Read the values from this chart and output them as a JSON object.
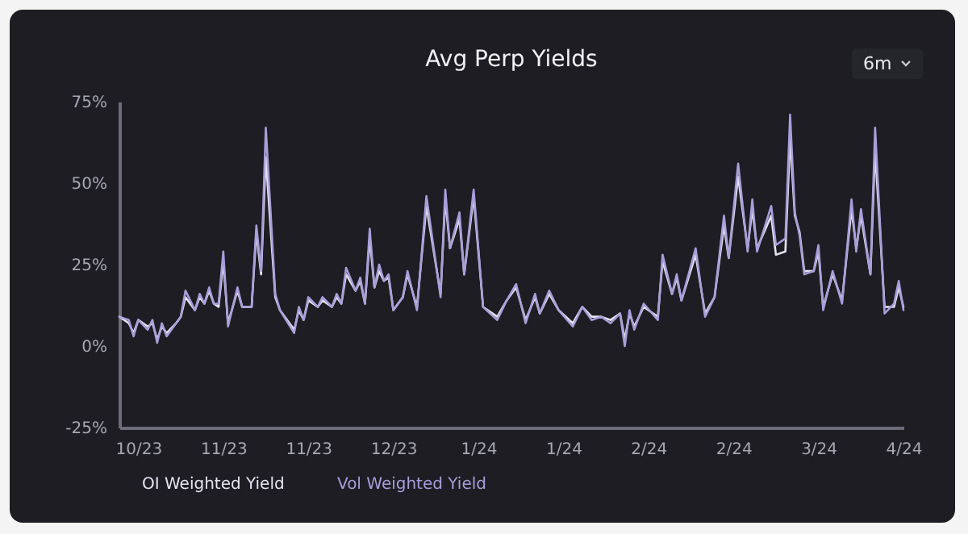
{
  "chart_data": {
    "type": "line",
    "title": "Avg Perp Yields",
    "annotations": [
      "6m"
    ],
    "x": [
      "2023-10-18",
      "2023-10-20",
      "2023-10-21",
      "2023-10-22",
      "2023-10-24",
      "2023-10-25",
      "2023-10-26",
      "2023-10-27",
      "2023-10-28",
      "2023-10-30",
      "2023-10-31",
      "2023-11-01",
      "2023-11-03",
      "2023-11-04",
      "2023-11-05",
      "2023-11-06",
      "2023-11-07",
      "2023-11-08",
      "2023-11-09",
      "2023-11-10",
      "2023-11-12",
      "2023-11-13",
      "2023-11-15",
      "2023-11-16",
      "2023-11-17",
      "2023-11-18",
      "2023-11-20",
      "2023-11-21",
      "2023-11-24",
      "2023-11-25",
      "2023-11-26",
      "2023-11-27",
      "2023-11-29",
      "2023-11-30",
      "2023-12-02",
      "2023-12-03",
      "2023-12-04",
      "2023-12-05",
      "2023-12-07",
      "2023-12-08",
      "2023-12-09",
      "2023-12-10",
      "2023-12-11",
      "2023-12-12",
      "2023-12-13",
      "2023-12-14",
      "2023-12-15",
      "2023-12-17",
      "2023-12-18",
      "2023-12-20",
      "2023-12-22",
      "2023-12-25",
      "2023-12-26",
      "2023-12-27",
      "2023-12-29",
      "2023-12-30",
      "2024-01-01",
      "2024-01-03",
      "2024-01-06",
      "2024-01-08",
      "2024-01-10",
      "2024-01-12",
      "2024-01-14",
      "2024-01-15",
      "2024-01-17",
      "2024-01-19",
      "2024-01-22",
      "2024-01-24",
      "2024-01-26",
      "2024-01-28",
      "2024-01-30",
      "2024-02-01",
      "2024-02-02",
      "2024-02-03",
      "2024-02-04",
      "2024-02-06",
      "2024-02-09",
      "2024-02-10",
      "2024-02-12",
      "2024-02-13",
      "2024-02-14",
      "2024-02-17",
      "2024-02-19",
      "2024-02-21",
      "2024-02-23",
      "2024-02-24",
      "2024-02-26",
      "2024-02-28",
      "2024-02-29",
      "2024-03-01",
      "2024-03-04",
      "2024-03-05",
      "2024-03-07",
      "2024-03-08",
      "2024-03-09",
      "2024-03-10",
      "2024-03-11",
      "2024-03-13",
      "2024-03-14",
      "2024-03-15",
      "2024-03-17",
      "2024-03-19",
      "2024-03-21",
      "2024-03-22",
      "2024-03-23",
      "2024-03-25",
      "2024-03-26",
      "2024-03-28",
      "2024-03-30",
      "2024-03-31",
      "2024-04-01"
    ],
    "series": [
      {
        "name": "OI Weighted Yield",
        "color": "#e6e3f0",
        "values": [
          9,
          7,
          4,
          8,
          6,
          7,
          2,
          6,
          4,
          7,
          9,
          15,
          11,
          15,
          13,
          17,
          13,
          12,
          26,
          7,
          17,
          12,
          12,
          35,
          22,
          58,
          15,
          11,
          5,
          11,
          8,
          14,
          12,
          14,
          12,
          15,
          13,
          22,
          17,
          20,
          13,
          33,
          18,
          23,
          20,
          21,
          11,
          15,
          22,
          12,
          43,
          16,
          45,
          30,
          39,
          22,
          46,
          12,
          9,
          14,
          18,
          8,
          15,
          10,
          16,
          11,
          7,
          12,
          9,
          9,
          8,
          10,
          2,
          10,
          6,
          12,
          9,
          26,
          16,
          21,
          14,
          28,
          10,
          15,
          37,
          27,
          52,
          30,
          42,
          30,
          40,
          28,
          29,
          64,
          40,
          35,
          23,
          23,
          29,
          12,
          22,
          14,
          42,
          30,
          40,
          22,
          60,
          12,
          12,
          18,
          12
        ]
      },
      {
        "name": "Vol Weighted Yield",
        "color": "#a99ed9",
        "values": [
          9,
          8,
          3,
          8,
          5,
          8,
          1,
          7,
          3,
          7,
          9,
          17,
          11,
          16,
          13,
          18,
          13,
          13,
          29,
          6,
          18,
          12,
          12,
          37,
          23,
          67,
          16,
          11,
          4,
          12,
          8,
          15,
          12,
          15,
          12,
          16,
          13,
          24,
          17,
          21,
          13,
          36,
          18,
          25,
          20,
          22,
          11,
          15,
          23,
          11,
          46,
          15,
          48,
          30,
          41,
          22,
          48,
          12,
          8,
          14,
          19,
          7,
          16,
          10,
          17,
          11,
          6,
          12,
          8,
          9,
          7,
          10,
          0,
          11,
          5,
          13,
          8,
          28,
          16,
          22,
          14,
          30,
          9,
          15,
          40,
          27,
          56,
          29,
          45,
          29,
          43,
          31,
          33,
          71,
          41,
          34,
          22,
          23,
          31,
          11,
          23,
          13,
          45,
          29,
          42,
          22,
          67,
          10,
          13,
          20,
          11
        ]
      }
    ],
    "xlim": [
      "2023-10-18",
      "2024-04-01"
    ],
    "xticks": [
      {
        "value": "2023-10-22",
        "label": "10/23"
      },
      {
        "value": "2023-11-09",
        "label": "11/23"
      },
      {
        "value": "2023-11-27",
        "label": "11/23"
      },
      {
        "value": "2023-12-15",
        "label": "12/23"
      },
      {
        "value": "2024-01-02",
        "label": "1/24"
      },
      {
        "value": "2024-01-20",
        "label": "1/24"
      },
      {
        "value": "2024-02-07",
        "label": "2/24"
      },
      {
        "value": "2024-02-25",
        "label": "2/24"
      },
      {
        "value": "2024-03-14",
        "label": "3/24"
      },
      {
        "value": "2024-04-01",
        "label": "4/24"
      }
    ],
    "ylim": [
      -25,
      75
    ],
    "yticks": [
      {
        "value": -25,
        "label": "-25%"
      },
      {
        "value": 0,
        "label": "0%"
      },
      {
        "value": 25,
        "label": "25%"
      },
      {
        "value": 50,
        "label": "50%"
      },
      {
        "value": 75,
        "label": "75%"
      }
    ],
    "grid": false,
    "legend": "bottom",
    "marker": "none",
    "line_style": "solid"
  }
}
